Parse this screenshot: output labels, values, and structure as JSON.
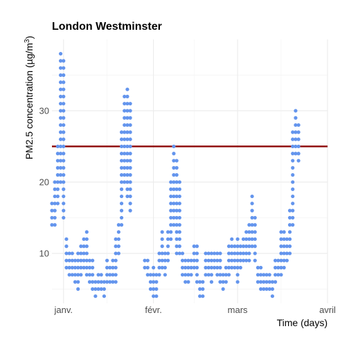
{
  "chart_data": {
    "type": "scatter",
    "title": "London Westminster",
    "xlabel": "Time (days)",
    "ylabel": "PM2.5 concentration (µg/m",
    "ylabel_superscript": "3",
    "ylabel_suffix": ")",
    "x_ticks": [
      "janv.",
      "févr.",
      "mars",
      "avril"
    ],
    "xlim": [
      "2019-12-28",
      "2020-04-01"
    ],
    "y_ticks": [
      10,
      20,
      30
    ],
    "ylim": [
      3,
      40
    ],
    "grid": true,
    "reference_line": {
      "value": 25,
      "color": "#8b0000"
    },
    "point_color": "#6495ed",
    "points": [
      {
        "x": "2019-12-28",
        "y": [
          14,
          15,
          16,
          17
        ]
      },
      {
        "x": "2019-12-29",
        "y": [
          14,
          15,
          16,
          17,
          18,
          19,
          20
        ]
      },
      {
        "x": "2019-12-30",
        "y": [
          17,
          18,
          19,
          20,
          21,
          22,
          23,
          24,
          25
        ]
      },
      {
        "x": "2019-12-31",
        "y": [
          20,
          21,
          22,
          23,
          24,
          25,
          26,
          27,
          28,
          29,
          30,
          31,
          32,
          33,
          34,
          35,
          36,
          37,
          38
        ]
      },
      {
        "x": "2020-01-01",
        "y": [
          15,
          16,
          17,
          18,
          19,
          20,
          21,
          22,
          23,
          24,
          25,
          26,
          27,
          28,
          29,
          30,
          31,
          32,
          33,
          34,
          35,
          36,
          37
        ]
      },
      {
        "x": "2020-01-02",
        "y": [
          8,
          9,
          10,
          11,
          12
        ]
      },
      {
        "x": "2020-01-03",
        "y": [
          7,
          8,
          9,
          10
        ]
      },
      {
        "x": "2020-01-04",
        "y": [
          7,
          8,
          9,
          10
        ]
      },
      {
        "x": "2020-01-05",
        "y": [
          6,
          7,
          8,
          9
        ]
      },
      {
        "x": "2020-01-06",
        "y": [
          5,
          6,
          7,
          8,
          9,
          10
        ]
      },
      {
        "x": "2020-01-07",
        "y": [
          7,
          8,
          9,
          10,
          11
        ]
      },
      {
        "x": "2020-01-08",
        "y": [
          8,
          9,
          10,
          11,
          12
        ]
      },
      {
        "x": "2020-01-09",
        "y": [
          7,
          8,
          9,
          10,
          11,
          12,
          13
        ]
      },
      {
        "x": "2020-01-10",
        "y": [
          6,
          7,
          8,
          9
        ]
      },
      {
        "x": "2020-01-11",
        "y": [
          5,
          6,
          7,
          8,
          9
        ]
      },
      {
        "x": "2020-01-12",
        "y": [
          4,
          5,
          6
        ]
      },
      {
        "x": "2020-01-13",
        "y": [
          5,
          6,
          7
        ]
      },
      {
        "x": "2020-01-14",
        "y": [
          5,
          6,
          7
        ]
      },
      {
        "x": "2020-01-15",
        "y": [
          4,
          5,
          6
        ]
      },
      {
        "x": "2020-01-16",
        "y": [
          6,
          7,
          8,
          9
        ]
      },
      {
        "x": "2020-01-17",
        "y": [
          6,
          7,
          8
        ]
      },
      {
        "x": "2020-01-18",
        "y": [
          6,
          7,
          8,
          9
        ]
      },
      {
        "x": "2020-01-19",
        "y": [
          6,
          7,
          8,
          9,
          10,
          11,
          12
        ]
      },
      {
        "x": "2020-01-20",
        "y": [
          10,
          11,
          12,
          13,
          14
        ]
      },
      {
        "x": "2020-01-21",
        "y": [
          14,
          15,
          16,
          17,
          18,
          19,
          20,
          21,
          22,
          23,
          24,
          25,
          26,
          27
        ]
      },
      {
        "x": "2020-01-22",
        "y": [
          20,
          21,
          22,
          23,
          24,
          25,
          26,
          27,
          28,
          29,
          30,
          31,
          32
        ]
      },
      {
        "x": "2020-01-23",
        "y": [
          18,
          19,
          20,
          21,
          22,
          23,
          24,
          25,
          26,
          27,
          28,
          29,
          30,
          31,
          32,
          33
        ]
      },
      {
        "x": "2020-01-24",
        "y": [
          16,
          17,
          18,
          19,
          20,
          21,
          22,
          23,
          24,
          25,
          26,
          27,
          28,
          29,
          30,
          31
        ]
      },
      {
        "x": "2020-01-29",
        "y": [
          8,
          9
        ]
      },
      {
        "x": "2020-01-30",
        "y": [
          7,
          8,
          9
        ]
      },
      {
        "x": "2020-01-31",
        "y": [
          5,
          6,
          7
        ]
      },
      {
        "x": "2020-02-01",
        "y": [
          4,
          5,
          6,
          7,
          8
        ]
      },
      {
        "x": "2020-02-02",
        "y": [
          4,
          5,
          6,
          7
        ]
      },
      {
        "x": "2020-02-03",
        "y": [
          7,
          8,
          9,
          10
        ]
      },
      {
        "x": "2020-02-04",
        "y": [
          8,
          9,
          10,
          11,
          12,
          13
        ]
      },
      {
        "x": "2020-02-05",
        "y": [
          7,
          8,
          9,
          10
        ]
      },
      {
        "x": "2020-02-06",
        "y": [
          9,
          10,
          11,
          12,
          13
        ]
      },
      {
        "x": "2020-02-07",
        "y": [
          12,
          13,
          14,
          15,
          16,
          17,
          18,
          19,
          20
        ]
      },
      {
        "x": "2020-02-08",
        "y": [
          14,
          15,
          16,
          17,
          18,
          19,
          20,
          21,
          22,
          23,
          24,
          25
        ]
      },
      {
        "x": "2020-02-09",
        "y": [
          10,
          11,
          12,
          13,
          14,
          15,
          16,
          17,
          18,
          19,
          20,
          21,
          22,
          23
        ]
      },
      {
        "x": "2020-02-10",
        "y": [
          10,
          11,
          12,
          13,
          14,
          15,
          16,
          17,
          18,
          19,
          20
        ]
      },
      {
        "x": "2020-02-11",
        "y": [
          7,
          8,
          9,
          10
        ]
      },
      {
        "x": "2020-02-12",
        "y": [
          6,
          7,
          8,
          9
        ]
      },
      {
        "x": "2020-02-13",
        "y": [
          6,
          7,
          8,
          9
        ]
      },
      {
        "x": "2020-02-14",
        "y": [
          7,
          8,
          9
        ]
      },
      {
        "x": "2020-02-15",
        "y": [
          8,
          9,
          10,
          11
        ]
      },
      {
        "x": "2020-02-16",
        "y": [
          6,
          7,
          8,
          9,
          10,
          11
        ]
      },
      {
        "x": "2020-02-17",
        "y": [
          4,
          5,
          6
        ]
      },
      {
        "x": "2020-02-18",
        "y": [
          4,
          5,
          6
        ]
      },
      {
        "x": "2020-02-19",
        "y": [
          7,
          8,
          9,
          10
        ]
      },
      {
        "x": "2020-02-20",
        "y": [
          7,
          8,
          9,
          10
        ]
      },
      {
        "x": "2020-02-21",
        "y": [
          6,
          7,
          8,
          9,
          10
        ]
      },
      {
        "x": "2020-02-22",
        "y": [
          8,
          9,
          10
        ]
      },
      {
        "x": "2020-02-23",
        "y": [
          7,
          8,
          9,
          10
        ]
      },
      {
        "x": "2020-02-24",
        "y": [
          6,
          7,
          8,
          9,
          10
        ]
      },
      {
        "x": "2020-02-25",
        "y": [
          5,
          6,
          7
        ]
      },
      {
        "x": "2020-02-26",
        "y": [
          6,
          7,
          8
        ]
      },
      {
        "x": "2020-02-27",
        "y": [
          7,
          8,
          9,
          10,
          11
        ]
      },
      {
        "x": "2020-02-28",
        "y": [
          8,
          9,
          10,
          11,
          12
        ]
      },
      {
        "x": "2020-02-29",
        "y": [
          8,
          9,
          10,
          11
        ]
      },
      {
        "x": "2020-03-01",
        "y": [
          6,
          7,
          8,
          9,
          10,
          11,
          12
        ]
      },
      {
        "x": "2020-03-02",
        "y": [
          8,
          9,
          10,
          11
        ]
      },
      {
        "x": "2020-03-03",
        "y": [
          9,
          10,
          11,
          12
        ]
      },
      {
        "x": "2020-03-04",
        "y": [
          9,
          10,
          11,
          12,
          13
        ]
      },
      {
        "x": "2020-03-05",
        "y": [
          9,
          10,
          11,
          12,
          13,
          14
        ]
      },
      {
        "x": "2020-03-06",
        "y": [
          11,
          12,
          13,
          14,
          15,
          16,
          17,
          18
        ]
      },
      {
        "x": "2020-03-07",
        "y": [
          9,
          10,
          11,
          12,
          13,
          14,
          15
        ]
      },
      {
        "x": "2020-03-08",
        "y": [
          6,
          7,
          8
        ]
      },
      {
        "x": "2020-03-09",
        "y": [
          5,
          6,
          7,
          8
        ]
      },
      {
        "x": "2020-03-10",
        "y": [
          5,
          6,
          7
        ]
      },
      {
        "x": "2020-03-11",
        "y": [
          5,
          6,
          7
        ]
      },
      {
        "x": "2020-03-12",
        "y": [
          5,
          6,
          7
        ]
      },
      {
        "x": "2020-03-13",
        "y": [
          4,
          5,
          6
        ]
      },
      {
        "x": "2020-03-14",
        "y": [
          6,
          7,
          8,
          9
        ]
      },
      {
        "x": "2020-03-15",
        "y": [
          7,
          8,
          9
        ]
      },
      {
        "x": "2020-03-16",
        "y": [
          7,
          8,
          9,
          10,
          11,
          12,
          13
        ]
      },
      {
        "x": "2020-03-17",
        "y": [
          8,
          9,
          10,
          11,
          12,
          13
        ]
      },
      {
        "x": "2020-03-18",
        "y": [
          9,
          10,
          11,
          12
        ]
      },
      {
        "x": "2020-03-19",
        "y": [
          10,
          11,
          12,
          13,
          14,
          15,
          16
        ]
      },
      {
        "x": "2020-03-20",
        "y": [
          14,
          15,
          16,
          17,
          18,
          19,
          20,
          21,
          22,
          23,
          24,
          25,
          26,
          27
        ]
      },
      {
        "x": "2020-03-21",
        "y": [
          24,
          25,
          26,
          27,
          28,
          29,
          30
        ]
      },
      {
        "x": "2020-03-22",
        "y": [
          23,
          24,
          25,
          26,
          27,
          28
        ]
      }
    ]
  }
}
